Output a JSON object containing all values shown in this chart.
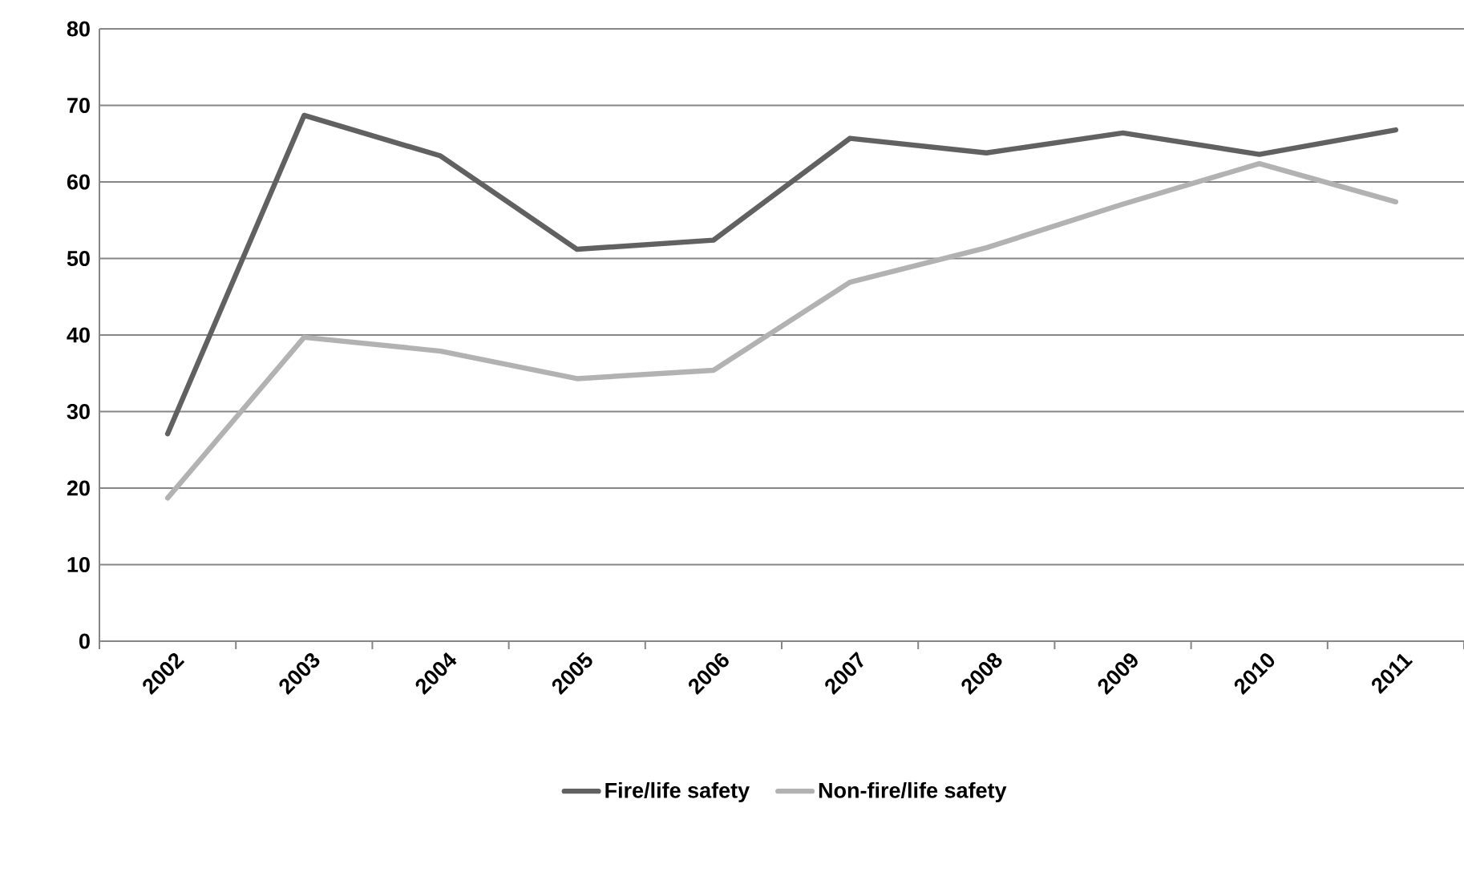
{
  "chart_data": {
    "type": "line",
    "categories": [
      "2002",
      "2003",
      "2004",
      "2005",
      "2006",
      "2007",
      "2008",
      "2009",
      "2010",
      "2011"
    ],
    "series": [
      {
        "name": "Fire/life safety",
        "color": "#616161",
        "values": [
          27.1,
          68.7,
          63.4,
          51.2,
          52.4,
          65.7,
          63.8,
          66.4,
          63.6,
          66.8
        ]
      },
      {
        "name": "Non-fire/life safety",
        "color": "#b2b2b2",
        "values": [
          18.7,
          39.7,
          37.9,
          34.3,
          35.4,
          46.9,
          51.4,
          57.1,
          62.4,
          57.4
        ]
      }
    ],
    "ylim": [
      0,
      80
    ],
    "yticks": [
      0,
      10,
      20,
      30,
      40,
      50,
      60,
      70,
      80
    ],
    "grid": "y",
    "legend": "bottom",
    "line_style": "solid",
    "marker": "none"
  }
}
